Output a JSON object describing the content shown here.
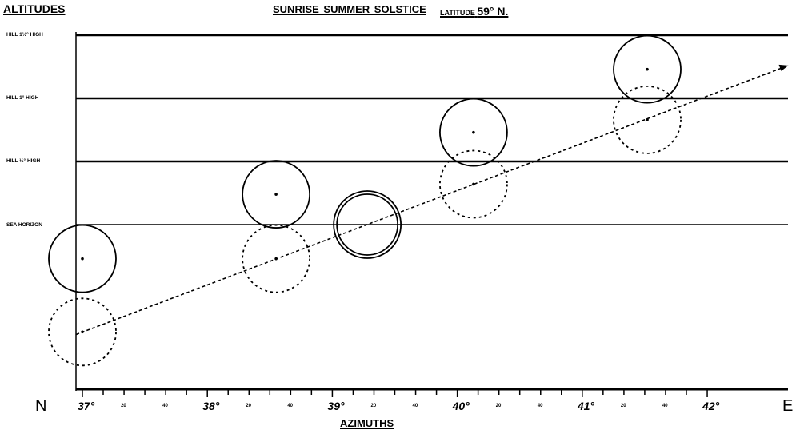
{
  "title": "SUNRISE  SUMMER SOLSTICE",
  "latitude_label": "LATITUDE",
  "latitude_value": "59° N.",
  "y_axis_label": "ALTITUDES",
  "x_axis_label": "AZIMUTHS",
  "direction_left": "N",
  "direction_right": "E",
  "altitude_lines": [
    {
      "label": "HILL 1½° HIGH",
      "altitude_deg": 1.5
    },
    {
      "label": "HILL 1° HIGH",
      "altitude_deg": 1.0
    },
    {
      "label": "HILL ½° HIGH",
      "altitude_deg": 0.5
    },
    {
      "label": "SEA HORIZON",
      "altitude_deg": 0
    }
  ],
  "azimuth_ticks": [
    {
      "label": "37°",
      "major": true
    },
    {
      "label": "20",
      "major": false
    },
    {
      "label": "40",
      "major": false
    },
    {
      "label": "38°",
      "major": true
    },
    {
      "label": "20",
      "major": false
    },
    {
      "label": "40",
      "major": false
    },
    {
      "label": "39°",
      "major": true
    },
    {
      "label": "20",
      "major": false
    },
    {
      "label": "40",
      "major": false
    },
    {
      "label": "40°",
      "major": true
    },
    {
      "label": "20",
      "major": false
    },
    {
      "label": "40",
      "major": false
    },
    {
      "label": "41°",
      "major": true
    },
    {
      "label": "20",
      "major": false
    },
    {
      "label": "40",
      "major": false
    },
    {
      "label": "42°",
      "major": true
    }
  ],
  "sun_positions": [
    {
      "azimuth": 37.0,
      "altitude": -0.27,
      "style": "solid"
    },
    {
      "azimuth": 37.0,
      "altitude": -0.85,
      "style": "dotted"
    },
    {
      "azimuth": 38.55,
      "altitude": 0.24,
      "style": "solid"
    },
    {
      "azimuth": 38.55,
      "altitude": -0.27,
      "style": "dotted"
    },
    {
      "azimuth": 39.28,
      "altitude": 0.0,
      "style": "double"
    },
    {
      "azimuth": 40.13,
      "altitude": 0.73,
      "style": "solid"
    },
    {
      "azimuth": 40.13,
      "altitude": 0.32,
      "style": "dotted"
    },
    {
      "azimuth": 41.52,
      "altitude": 1.23,
      "style": "solid"
    },
    {
      "azimuth": 41.52,
      "altitude": 0.83,
      "style": "dotted"
    }
  ],
  "sun_path": {
    "start": {
      "azimuth": 36.95,
      "altitude": -0.87
    },
    "end": {
      "azimuth": 42.65,
      "altitude": 1.26
    }
  }
}
